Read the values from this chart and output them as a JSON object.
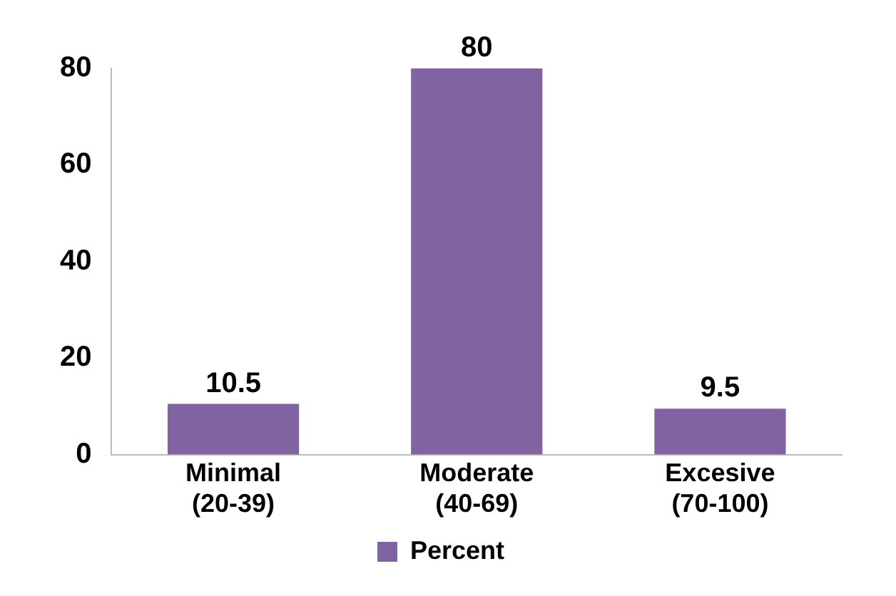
{
  "chart_data": {
    "type": "bar",
    "categories": [
      "Minimal (20-39)",
      "Moderate (40-69)",
      "Excesive (70-100)"
    ],
    "series": [
      {
        "name": "Percent",
        "color": "#8064a2",
        "values": [
          10.5,
          80,
          9.5
        ]
      }
    ],
    "ylim": [
      0,
      80
    ],
    "yticks": [
      0,
      20,
      40,
      60,
      80
    ],
    "grid": false,
    "legend": "bottom",
    "data_labels": true
  }
}
